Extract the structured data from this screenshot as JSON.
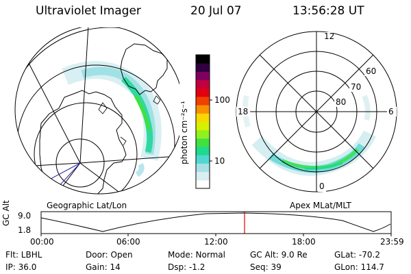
{
  "header": {
    "instrument": "Ultraviolet Imager",
    "date": "20 Jul 07",
    "time": "13:56:28 UT"
  },
  "geographic_panel": {
    "caption": "Geographic Lat/Lon"
  },
  "magnetic_panel": {
    "caption": "Apex MLat/MLT",
    "mlt_labels": {
      "top": "12",
      "left": "18",
      "right": "6",
      "bottom": "0"
    },
    "mlat_labels": [
      "60",
      "70",
      "80"
    ]
  },
  "colorbar": {
    "label": "photon cm⁻²s⁻¹",
    "tick_100": "100",
    "tick_10": "10",
    "colors": [
      "#ffffff",
      "#d8eef0",
      "#a8e0e6",
      "#50d8d0",
      "#20d890",
      "#40e040",
      "#90f020",
      "#d8f000",
      "#f8d800",
      "#f89000",
      "#f04000",
      "#e00010",
      "#c00040",
      "#800060",
      "#300040",
      "#000000"
    ]
  },
  "timeline": {
    "ylabel": "GC Alt",
    "ymax_label": "9.0",
    "ymin_label": "1.8",
    "ticks": [
      "00:00",
      "06:00",
      "12:00",
      "18:00",
      "23:59"
    ],
    "current_time_hours": 13.94,
    "marker_color": "#dd0000"
  },
  "info": {
    "filter": "Flt: LBHL",
    "ip": "IP: 36.0",
    "door": "Door: Open",
    "gain": "Gain: 14",
    "mode": "Mode: Normal",
    "dsp": "Dsp:   -1.2",
    "gc_alt": "GC Alt: 9.0 Re",
    "seq": "Seq: 39",
    "glat": "GLat: -70.2",
    "glon": "GLon: 114.7"
  }
}
